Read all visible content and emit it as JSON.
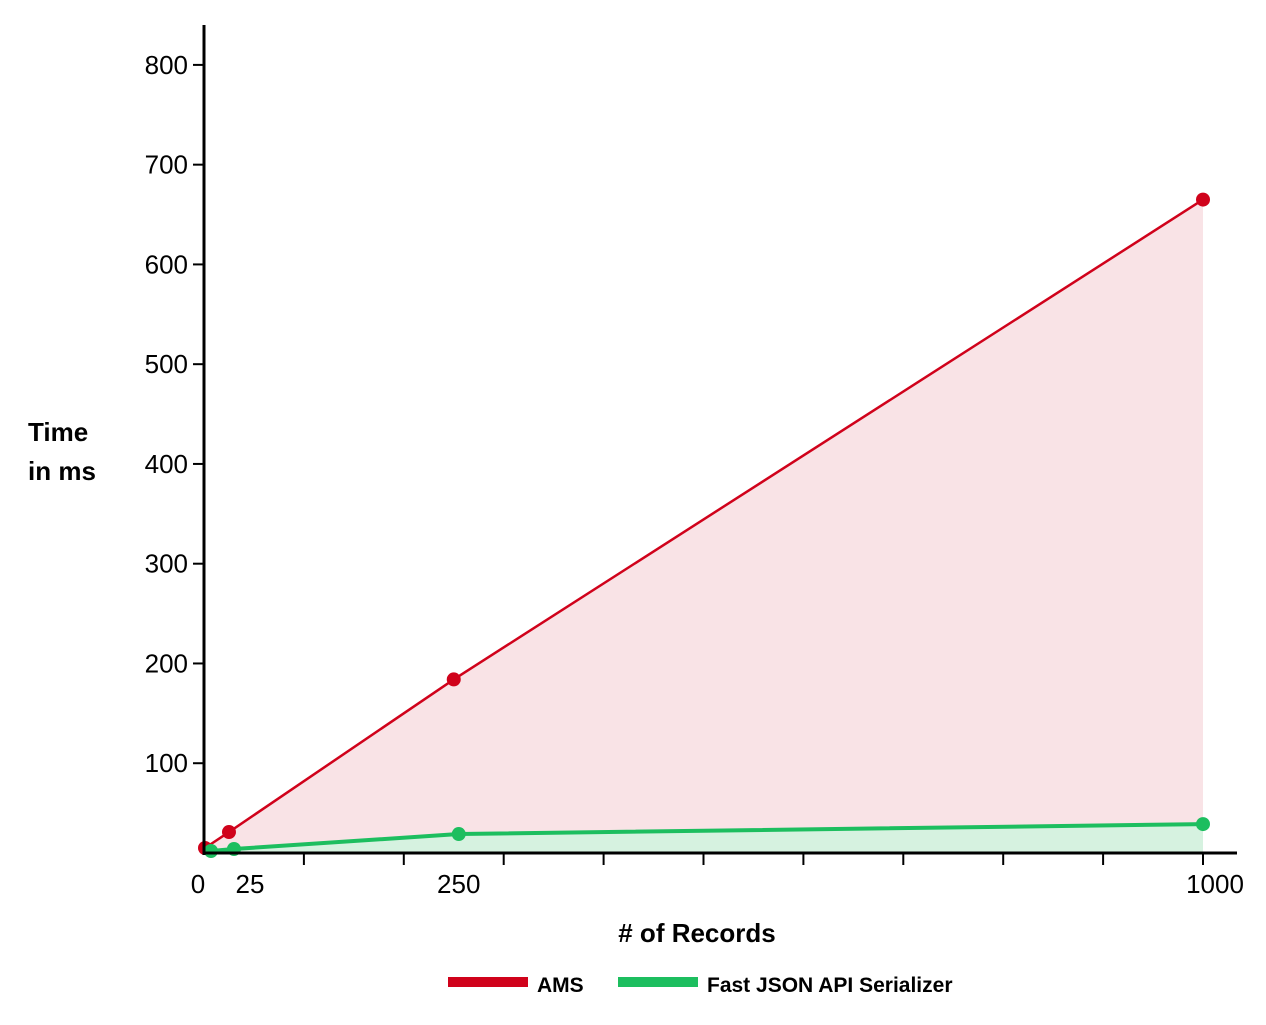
{
  "chart_data": {
    "type": "line",
    "xlabel": "# of Records",
    "ylabel_lines": [
      "Time",
      "in ms"
    ],
    "x_ticks": [
      0,
      25,
      250,
      1000
    ],
    "y_ticks": [
      100,
      200,
      300,
      400,
      500,
      600,
      700,
      800
    ],
    "xlim": [
      0,
      1000
    ],
    "ylim": [
      10,
      840
    ],
    "grid": false,
    "legend_position": "bottom",
    "series": [
      {
        "name": "AMS",
        "color": "#d0021b",
        "fill": "#f9e3e6",
        "points": [
          [
            1,
            15
          ],
          [
            25,
            31
          ],
          [
            250,
            184
          ],
          [
            1000,
            665
          ]
        ]
      },
      {
        "name": "Fast JSON API Serializer",
        "color": "#1dbe5f",
        "fill": "#d6f2e0",
        "points": [
          [
            7,
            12
          ],
          [
            30,
            14
          ],
          [
            255,
            29
          ],
          [
            1000,
            39
          ]
        ]
      }
    ]
  }
}
